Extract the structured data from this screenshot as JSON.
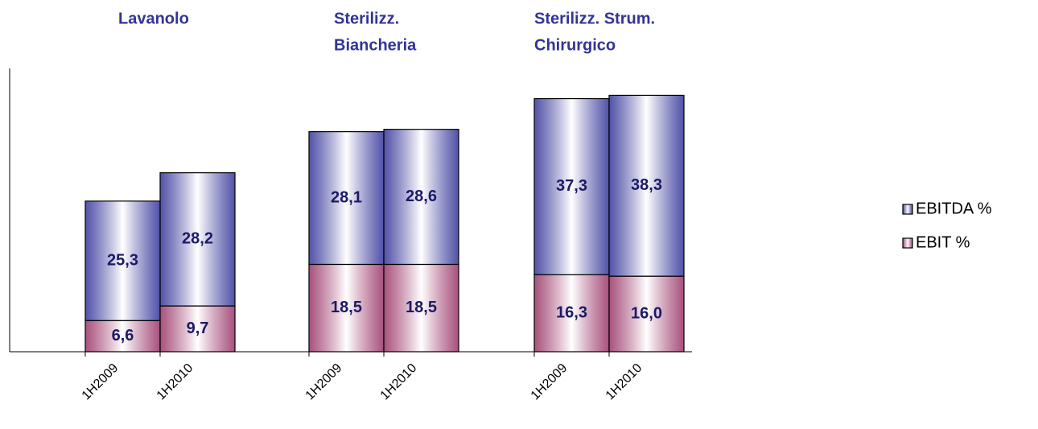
{
  "chart_data": {
    "type": "stacked_bar",
    "group_titles": [
      [
        "Lavanolo"
      ],
      [
        "Sterilizz.",
        "Biancheria"
      ],
      [
        "Sterilizz.  Strum.",
        "Chirurgico"
      ]
    ],
    "categories": [
      "1H2009",
      "1H2010",
      "1H2009",
      "1H2010",
      "1H2009",
      "1H2010"
    ],
    "series": [
      {
        "name": "EBIT  %",
        "color": "#993366",
        "values": [
          6.6,
          9.7,
          18.5,
          18.5,
          16.3,
          16.0
        ],
        "value_labels": [
          "6,6",
          "9,7",
          "18,5",
          "18,5",
          "16,3",
          "16,0"
        ]
      },
      {
        "name": "EBITDA  %",
        "color": "#333399",
        "values": [
          25.3,
          28.2,
          28.1,
          28.6,
          37.3,
          38.3
        ],
        "value_labels": [
          "25,3",
          "28,2",
          "28,1",
          "28,6",
          "37,3",
          "38,3"
        ]
      }
    ],
    "ylim": [
      0,
      60
    ],
    "legend": "right"
  }
}
